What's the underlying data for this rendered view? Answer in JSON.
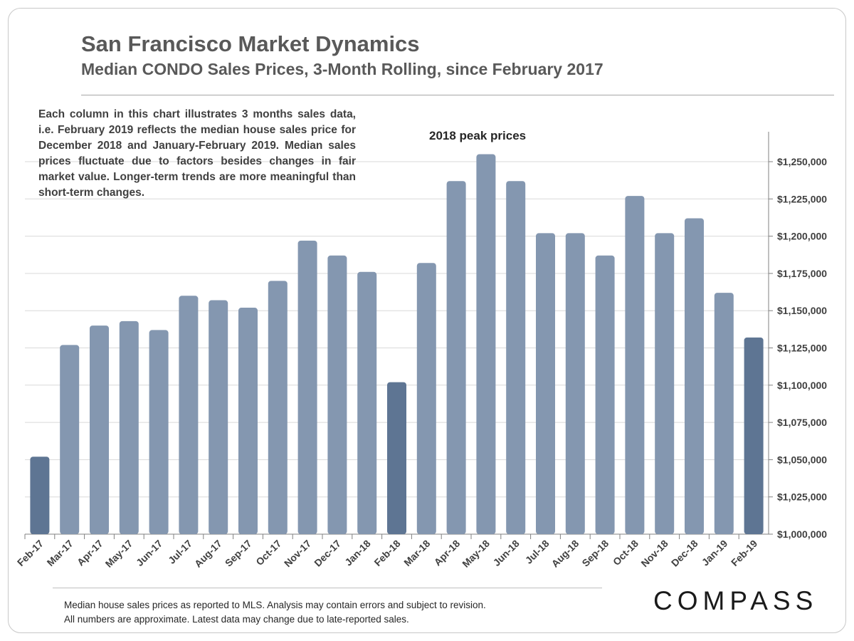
{
  "header": {
    "title": "San Francisco Market Dynamics",
    "subtitle": "Median CONDO Sales Prices, 3-Month Rolling, since February 2017"
  },
  "note": "Each column in this chart illustrates 3 months sales data, i.e. February 2019 reflects the median house sales price for December 2018 and January-February 2019. Median sales prices fluctuate due to factors besides changes in fair market value. Longer-term trends are more meaningful than short-term changes.",
  "annotation": "2018 peak prices",
  "footer": {
    "line1": "Median house sales prices as reported to MLS.  Analysis may contain errors and subject to revision.",
    "line2": "All numbers are approximate. Latest data may change due to late-reported sales."
  },
  "logo": "COMPASS",
  "colors": {
    "bar": "#8497b0",
    "highlight": "#5e7593",
    "grid": "#d9d9d9",
    "axis": "#808080"
  },
  "chart_data": {
    "type": "bar",
    "categories": [
      "Feb-17",
      "Mar-17",
      "Apr-17",
      "May-17",
      "Jun-17",
      "Jul-17",
      "Aug-17",
      "Sep-17",
      "Oct-17",
      "Nov-17",
      "Dec-17",
      "Jan-18",
      "Feb-18",
      "Mar-18",
      "Apr-18",
      "May-18",
      "Jun-18",
      "Jul-18",
      "Aug-18",
      "Sep-18",
      "Oct-18",
      "Nov-18",
      "Dec-18",
      "Jan-19",
      "Feb-19"
    ],
    "values": [
      1052000,
      1127000,
      1140000,
      1143000,
      1137000,
      1160000,
      1157000,
      1152000,
      1170000,
      1197000,
      1187000,
      1176000,
      1102000,
      1182000,
      1237000,
      1255000,
      1237000,
      1202000,
      1202000,
      1187000,
      1227000,
      1202000,
      1212000,
      1162000,
      1132000
    ],
    "highlighted": [
      "Feb-17",
      "Feb-18",
      "Feb-19"
    ],
    "ylim": [
      1000000,
      1275000
    ],
    "yticks": [
      1000000,
      1025000,
      1050000,
      1075000,
      1100000,
      1125000,
      1150000,
      1175000,
      1200000,
      1225000,
      1250000
    ],
    "ytick_labels": [
      "$1,000,000",
      "$1,025,000",
      "$1,050,000",
      "$1,075,000",
      "$1,100,000",
      "$1,125,000",
      "$1,150,000",
      "$1,175,000",
      "$1,200,000",
      "$1,225,000",
      "$1,250,000"
    ],
    "yaxis_side": "right",
    "grid": true
  }
}
